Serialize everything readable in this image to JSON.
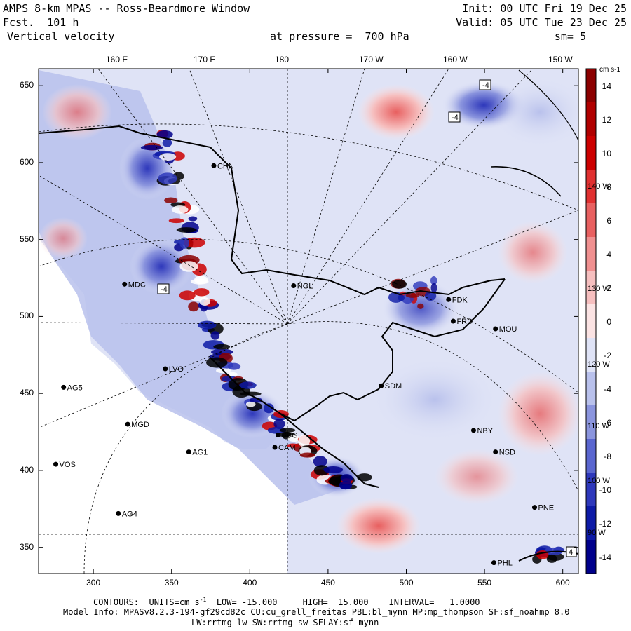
{
  "header": {
    "title": "AMPS 8-km MPAS -- Ross-Beardmore Window",
    "forecast_label": "Fcst.",
    "forecast_hours": "101 h",
    "field": "Vertical velocity",
    "level": "at pressure =  700 hPa",
    "init": "Init: 00 UTC Fri 19 Dec 25",
    "valid": "Valid: 05 UTC Tue 23 Dec 25",
    "smoothing": "sm= 5"
  },
  "top_axis": {
    "labels": [
      "160 E",
      "170 E",
      "180",
      "170 W",
      "160 W",
      "150 W"
    ],
    "values": [
      160,
      170,
      180,
      190,
      200,
      210
    ]
  },
  "x_axis": {
    "labels": [
      "300",
      "350",
      "400",
      "450",
      "500",
      "550",
      "600"
    ],
    "values": [
      300,
      350,
      400,
      450,
      500,
      550,
      600
    ],
    "range": [
      265,
      610
    ]
  },
  "y_axis": {
    "labels": [
      "350",
      "400",
      "450",
      "500",
      "550",
      "600",
      "650"
    ],
    "values": [
      350,
      400,
      450,
      500,
      550,
      600,
      650
    ],
    "range": [
      333,
      661
    ]
  },
  "colorbar": {
    "units": "cm s-1",
    "tick_labels": [
      "14",
      "12",
      "10",
      "8",
      "6",
      "4",
      "2",
      "0",
      "-2",
      "-4",
      "-6",
      "-8",
      "-10",
      "-12",
      "-14"
    ],
    "colors": [
      "#8b0000",
      "#b00000",
      "#cc0000",
      "#e03030",
      "#e86060",
      "#f09090",
      "#f6bfbf",
      "#fbe3e3",
      "#dfe3f6",
      "#b9c1ec",
      "#8b95de",
      "#5a66cf",
      "#2e38bb",
      "#0d1aa6",
      "#00008b"
    ],
    "side_labels": [
      "140 W",
      "130 W",
      "120 W",
      "110 W",
      "100 W",
      "90 W"
    ]
  },
  "stations": [
    {
      "name": "MDC",
      "x": 320,
      "y": 521
    },
    {
      "name": "NGL",
      "x": 428,
      "y": 520
    },
    {
      "name": "FDK",
      "x": 527,
      "y": 511
    },
    {
      "name": "FRD",
      "x": 530,
      "y": 497
    },
    {
      "name": "MOU",
      "x": 557,
      "y": 492
    },
    {
      "name": "AG5",
      "x": 281,
      "y": 454
    },
    {
      "name": "LVO",
      "x": 346,
      "y": 466
    },
    {
      "name": "SDM",
      "x": 484,
      "y": 455
    },
    {
      "name": "MGD",
      "x": 322,
      "y": 430
    },
    {
      "name": "NBY",
      "x": 543,
      "y": 426
    },
    {
      "name": "AG1",
      "x": 361,
      "y": 412
    },
    {
      "name": "SBG",
      "x": 418,
      "y": 423
    },
    {
      "name": "CAM",
      "x": 416,
      "y": 415
    },
    {
      "name": "NSD",
      "x": 557,
      "y": 412
    },
    {
      "name": "VOS",
      "x": 276,
      "y": 404
    },
    {
      "name": "AG4",
      "x": 316,
      "y": 372
    },
    {
      "name": "PHL",
      "x": 556,
      "y": 340
    },
    {
      "name": "PNE",
      "x": 582,
      "y": 376
    },
    {
      "name": "CHN",
      "x": 377,
      "y": 598
    }
  ],
  "contour_labels": [
    "-4",
    "-4",
    "-4",
    "4"
  ],
  "footer": {
    "contours_label": "CONTOURS:",
    "units": "UNITS=cm s",
    "units_exp": "-1",
    "low": "LOW= -15.000",
    "high": "HIGH=  15.000",
    "interval": "INTERVAL=   1.0000",
    "model_info": "Model Info: MPASv8.2.3-194-gf29cd82c CU:cu_grell_freitas PBL:bl_mynn MP:mp_thompson SF:sf_noahmp 8.0",
    "model_info2": "LW:rrtmg_lw SW:rrtmg_sw SFLAY:sf_mynn"
  }
}
